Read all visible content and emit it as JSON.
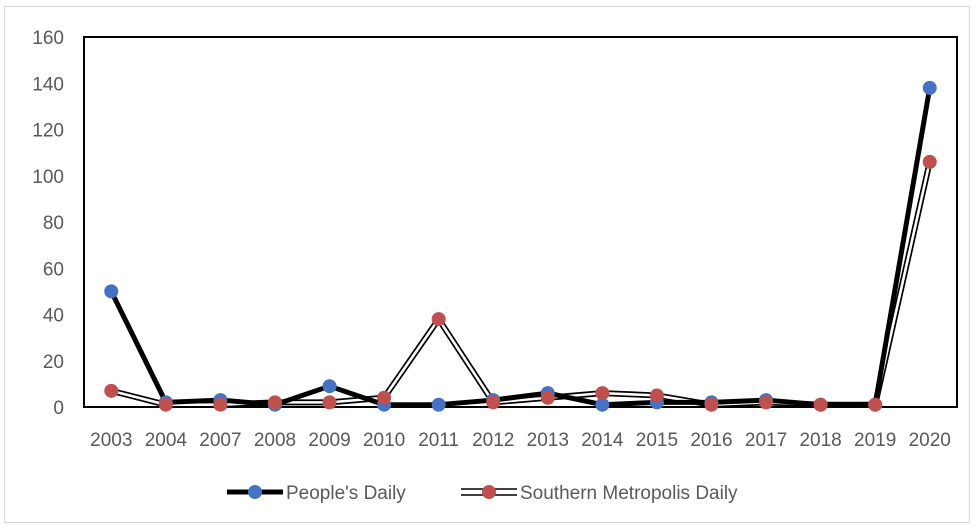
{
  "chart_data": {
    "type": "line",
    "title": "",
    "xlabel": "",
    "ylabel": "",
    "categories": [
      "2003",
      "2004",
      "2007",
      "2008",
      "2009",
      "2010",
      "2011",
      "2012",
      "2013",
      "2014",
      "2015",
      "2016",
      "2017",
      "2018",
      "2019",
      "2020"
    ],
    "ylim": [
      0,
      160
    ],
    "yticks": [
      "0",
      "20",
      "40",
      "60",
      "80",
      "100",
      "120",
      "140",
      "160"
    ],
    "grid": false,
    "legend": "bottom",
    "series": [
      {
        "name": "People's Daily",
        "values": [
          50,
          2,
          3,
          1,
          9,
          1,
          1,
          3,
          6,
          1,
          2,
          2,
          3,
          1,
          1,
          138
        ],
        "line_color": "#000000",
        "marker_color": "#4472c4",
        "line_style": "solid-thick"
      },
      {
        "name": "Southern Metropolis Daily",
        "values": [
          7,
          1,
          1,
          2,
          2,
          4,
          38,
          2,
          4,
          6,
          5,
          1,
          2,
          1,
          1,
          106
        ],
        "line_color": "#000000",
        "marker_color": "#c0504d",
        "line_style": "double"
      }
    ]
  }
}
